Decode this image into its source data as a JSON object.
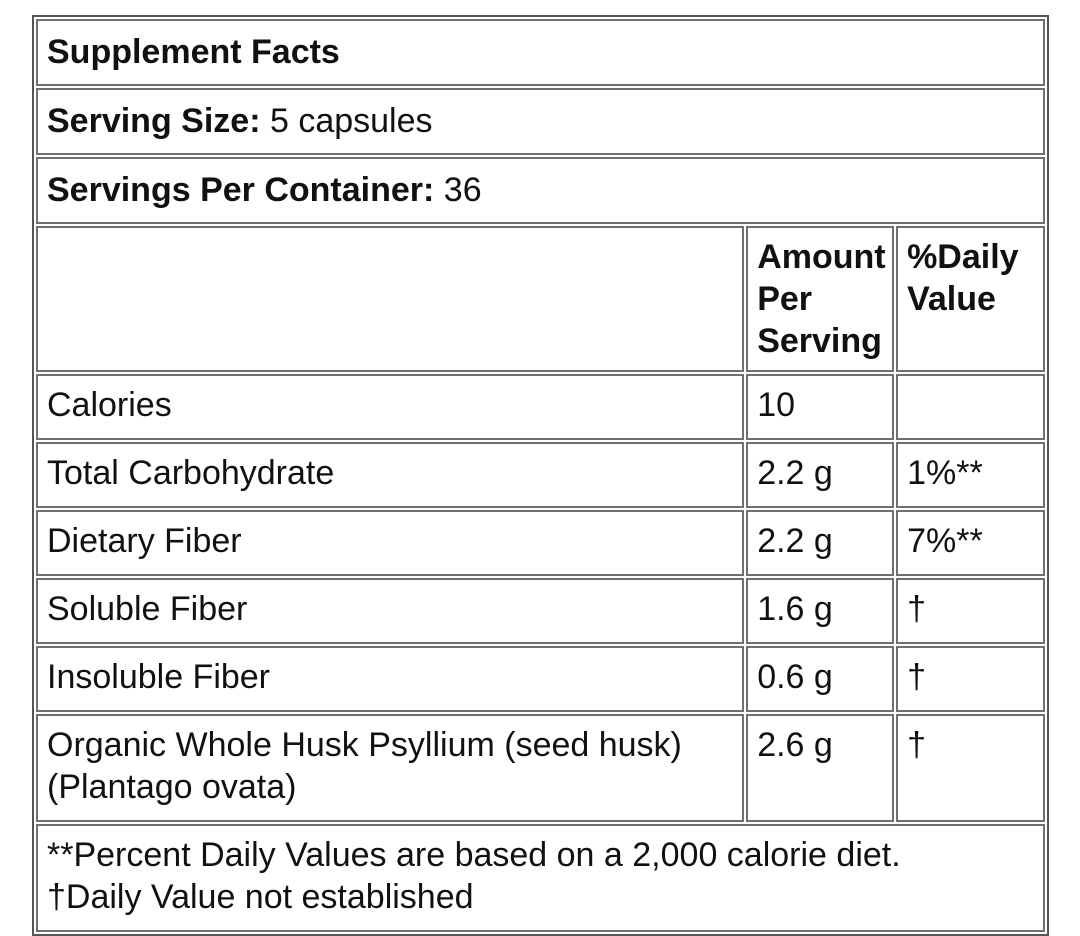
{
  "panel": {
    "title": "Supplement Facts",
    "serving_size_label": "Serving Size:",
    "serving_size_value": " 5 capsules",
    "servings_per_container_label": "Servings Per Container:",
    "servings_per_container_value": " 36"
  },
  "columns": {
    "amount_line1": "Amount",
    "amount_line2": "Per",
    "amount_line3": "Serving",
    "dv_line1": "%Daily",
    "dv_line2": "Value"
  },
  "rows": [
    {
      "name": "Calories",
      "amount": "10",
      "dv": ""
    },
    {
      "name": "Total Carbohydrate",
      "amount": "2.2 g",
      "dv": "1%**"
    },
    {
      "name": "Dietary Fiber",
      "amount": "2.2 g",
      "dv": "7%**"
    },
    {
      "name": "Soluble Fiber",
      "amount": "1.6 g",
      "dv": "†"
    },
    {
      "name": "Insoluble Fiber",
      "amount": "0.6 g",
      "dv": "†"
    },
    {
      "name_line1": "Organic Whole Husk Psyllium (seed husk)",
      "name_line2": "(Plantago ovata)",
      "amount": "2.6 g",
      "dv": "†"
    }
  ],
  "footnotes": {
    "line1": "**Percent Daily Values are based on a 2,000 calorie diet.",
    "line2": "†Daily Value not established"
  }
}
